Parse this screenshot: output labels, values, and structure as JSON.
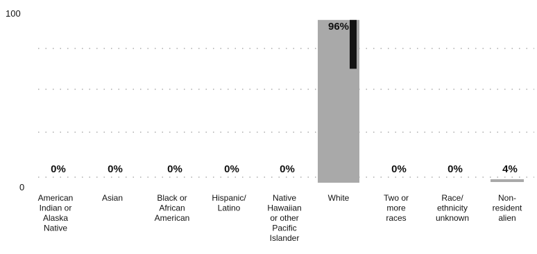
{
  "chart_data": {
    "type": "bar",
    "title": "",
    "xlabel": "",
    "ylabel": "",
    "ylim": [
      0,
      100
    ],
    "y_tick_labels": [
      "0",
      "100"
    ],
    "grid": "dotted horizontal",
    "categories": [
      [
        "American",
        "Indian or",
        "Alaska",
        "Native"
      ],
      [
        "Asian"
      ],
      [
        "Black or",
        "African",
        "American"
      ],
      [
        "Hispanic/",
        "Latino"
      ],
      [
        "Native",
        "Hawaiian",
        "or other",
        "Pacific",
        "Islander"
      ],
      [
        "White"
      ],
      [
        "Two or",
        "more",
        "races"
      ],
      [
        "Race/",
        "ethnicity",
        "unknown"
      ],
      [
        "Non-",
        "resident",
        "alien"
      ]
    ],
    "values": [
      0,
      0,
      0,
      0,
      0,
      96,
      0,
      0,
      4
    ],
    "value_labels": [
      "0%",
      "0%",
      "0%",
      "0%",
      "0%",
      "96%",
      "0%",
      "0%",
      "4%"
    ],
    "colors": {
      "bar": "#a9a9a9",
      "bar_dark": "#141414",
      "grid": "#9a9a9a",
      "text": "#111111"
    }
  }
}
